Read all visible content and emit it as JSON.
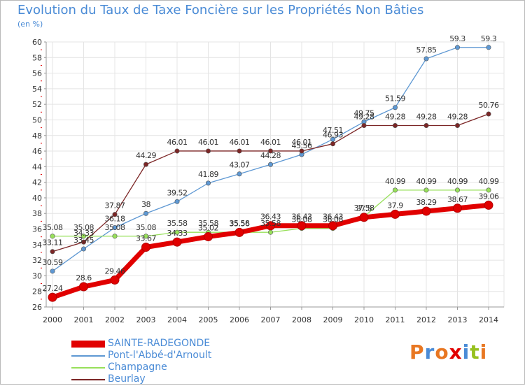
{
  "chart_data": {
    "type": "line",
    "title": "Evolution du Taux de Taxe Foncière sur les Propriétés Non Bâties",
    "subtitle": "(en %)",
    "x": [
      "2000",
      "2001",
      "2002",
      "2003",
      "2004",
      "2005",
      "2006",
      "2007",
      "2008",
      "2009",
      "2010",
      "2011",
      "2012",
      "2013",
      "2014"
    ],
    "ylim": [
      26,
      60
    ],
    "yticks": [
      26,
      28,
      30,
      32,
      34,
      36,
      38,
      40,
      42,
      44,
      46,
      48,
      50,
      52,
      54,
      56,
      58,
      60
    ],
    "grid": true,
    "legend_position": "bottom-left",
    "series": [
      {
        "name": "SAINTE-RADEGONDE",
        "color": "#e10000",
        "values": [
          27.24,
          28.6,
          29.46,
          33.67,
          34.33,
          35.02,
          35.56,
          36.43,
          36.43,
          36.43,
          37.5,
          37.9,
          38.29,
          38.67,
          39.06
        ]
      },
      {
        "name": "Pont-l'Abbé-d'Arnoult",
        "color": "#5e98d3",
        "values": [
          30.59,
          33.45,
          36.18,
          38,
          39.52,
          41.89,
          43.07,
          44.28,
          45.56,
          47.51,
          49.75,
          51.59,
          57.85,
          59.3,
          59.3
        ]
      },
      {
        "name": "Champagne",
        "color": "#97e05a",
        "values": [
          35.08,
          35.08,
          35.08,
          35.08,
          35.58,
          35.58,
          35.58,
          35.58,
          36.08,
          36.08,
          37.58,
          40.99,
          40.99,
          40.99,
          40.99
        ]
      },
      {
        "name": "Beurlay",
        "color": "#7c2626",
        "values": [
          33.11,
          34.33,
          37.87,
          44.29,
          46.01,
          46.01,
          46.01,
          46.01,
          46.01,
          46.93,
          49.28,
          49.28,
          49.28,
          49.28,
          50.76
        ]
      }
    ],
    "data_labels": [
      [
        "27.24",
        "28.6",
        "29.46",
        "33.67",
        "34.33",
        "35.02",
        "35.56",
        "36.43",
        "36.43",
        "36.43",
        "37.5",
        "37.9",
        "38.29",
        "38.67",
        "39.06"
      ],
      [
        "30.59",
        "33.45",
        "36.18",
        "38",
        "39.52",
        "41.89",
        "43.07",
        "44.28",
        "45.56",
        "47.51",
        "49.75",
        "51.59",
        "57.85",
        "59.3",
        "59.3"
      ],
      [
        "35.08",
        "35.08",
        "35.08",
        "35.08",
        "35.58",
        "35.58",
        "35.58",
        "35.58",
        "36.08",
        "36.08",
        "37.58",
        "40.99",
        "40.99",
        "40.99",
        "40.99"
      ],
      [
        "33.11",
        "34.33",
        "37.87",
        "44.29",
        "46.01",
        "46.01",
        "46.01",
        "46.01",
        "46.01",
        "46.93",
        "49.28",
        "49.28",
        "49.28",
        "49.28",
        "50.76"
      ]
    ]
  },
  "logo": {
    "letters": [
      "P",
      "r",
      "o",
      "x",
      "i",
      "t",
      "i"
    ],
    "colors": [
      "#e87722",
      "#4a8bd6",
      "#e87722",
      "#e10000",
      "#4a8bd6",
      "#97c11f",
      "#e87722"
    ]
  }
}
